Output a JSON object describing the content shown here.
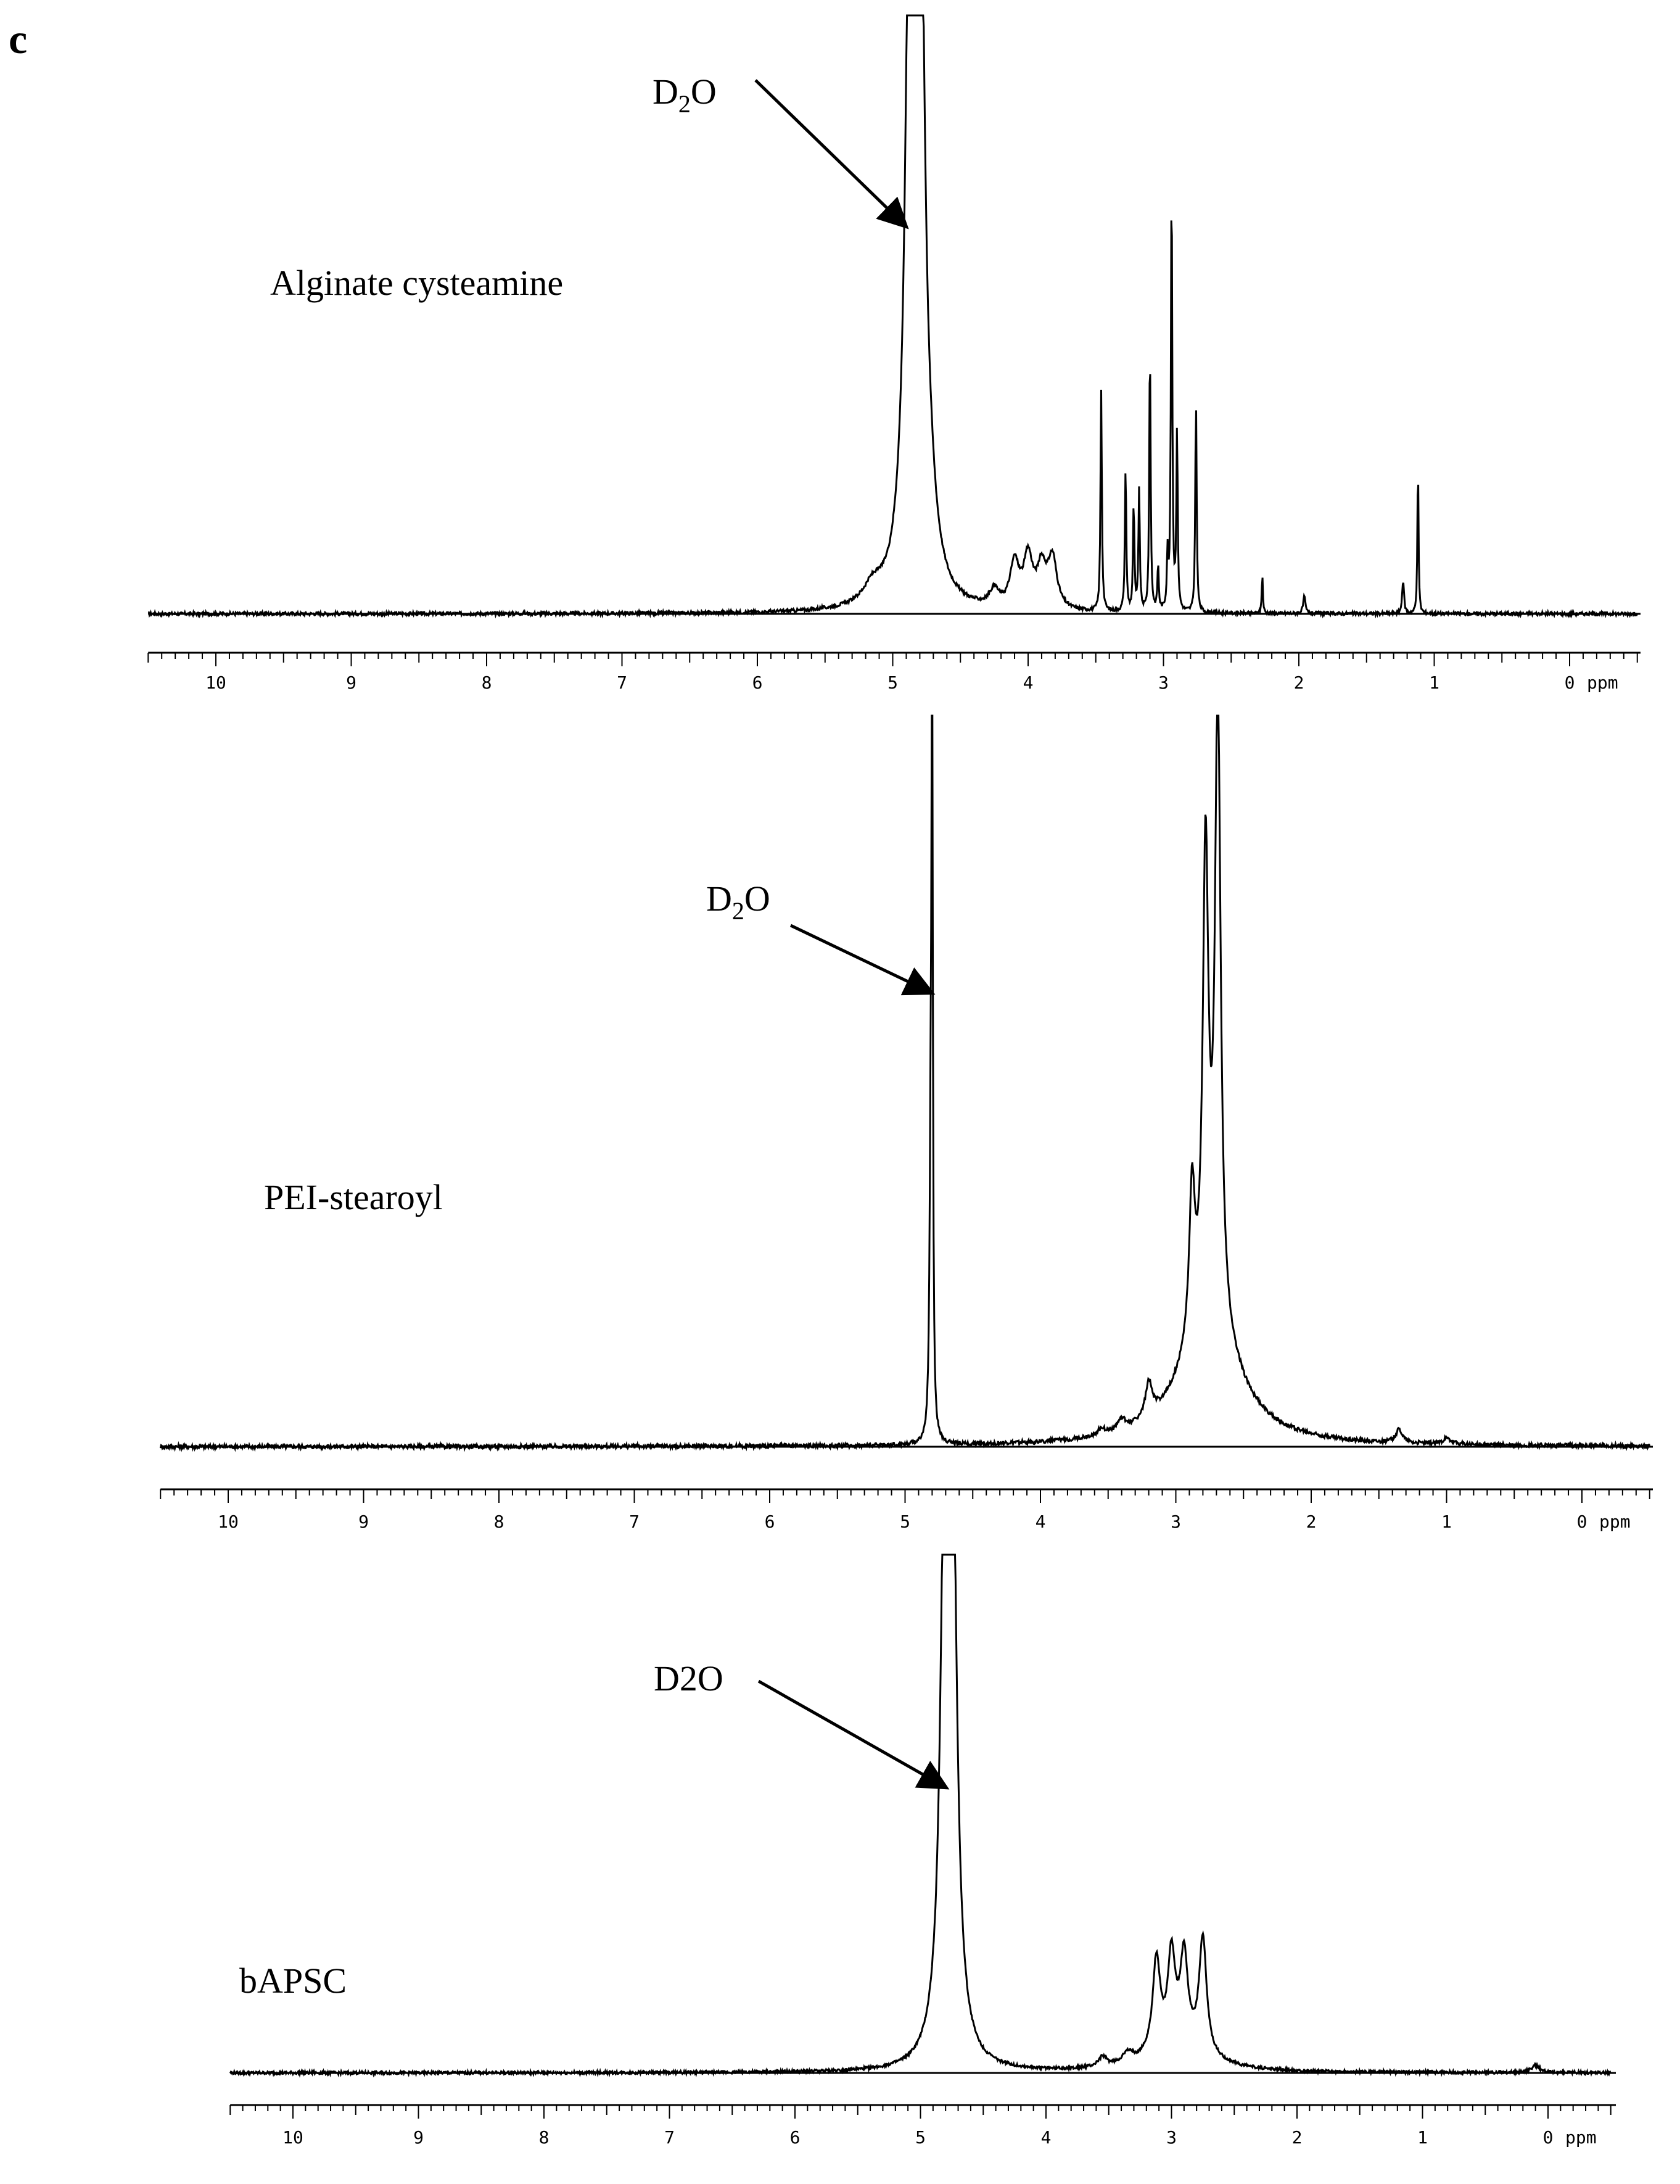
{
  "panel_label": "c",
  "chart_data": [
    {
      "type": "line",
      "name": "Alginate cysteamine",
      "label": "Alginate cysteamine",
      "xlabel": "ppm",
      "x_reversed": true,
      "xlim": [
        10.5,
        -0.5
      ],
      "ticks": [
        10,
        9,
        8,
        7,
        6,
        5,
        4,
        3,
        2,
        1,
        0
      ],
      "tick_labels": [
        "10",
        "9",
        "8",
        "7",
        "6",
        "5",
        "4",
        "3",
        "2",
        "1",
        "0"
      ],
      "unit_label": "ppm",
      "ylim": [
        0,
        1.08
      ],
      "annotation": {
        "text_main": "D",
        "text_sub": "2",
        "text_end": "O",
        "x": 4.9
      },
      "baseline": 0.0,
      "peaks": [
        {
          "x": 5.15,
          "h": 0.03,
          "w": 0.08
        },
        {
          "x": 4.87,
          "h": 1.25,
          "w": 0.04
        },
        {
          "x": 4.8,
          "h": 1.3,
          "w": 0.04
        },
        {
          "x": 4.72,
          "h": 0.06,
          "w": 0.06
        },
        {
          "x": 4.25,
          "h": 0.03,
          "w": 0.04
        },
        {
          "x": 4.1,
          "h": 0.08,
          "w": 0.04
        },
        {
          "x": 4.0,
          "h": 0.09,
          "w": 0.04
        },
        {
          "x": 3.9,
          "h": 0.07,
          "w": 0.04
        },
        {
          "x": 3.82,
          "h": 0.09,
          "w": 0.04
        },
        {
          "x": 3.46,
          "h": 0.4,
          "w": 0.006
        },
        {
          "x": 3.28,
          "h": 0.26,
          "w": 0.006
        },
        {
          "x": 3.22,
          "h": 0.19,
          "w": 0.006
        },
        {
          "x": 3.18,
          "h": 0.22,
          "w": 0.006
        },
        {
          "x": 3.1,
          "h": 0.48,
          "w": 0.006
        },
        {
          "x": 3.04,
          "h": 0.08,
          "w": 0.006
        },
        {
          "x": 2.97,
          "h": 0.1,
          "w": 0.006
        },
        {
          "x": 2.94,
          "h": 0.78,
          "w": 0.006
        },
        {
          "x": 2.9,
          "h": 0.32,
          "w": 0.006
        },
        {
          "x": 2.76,
          "h": 0.38,
          "w": 0.006
        },
        {
          "x": 2.27,
          "h": 0.07,
          "w": 0.005
        },
        {
          "x": 1.96,
          "h": 0.03,
          "w": 0.01
        },
        {
          "x": 1.23,
          "h": 0.06,
          "w": 0.008
        },
        {
          "x": 1.12,
          "h": 0.27,
          "w": 0.005
        }
      ]
    },
    {
      "type": "line",
      "name": "PEI-stearoyl",
      "label": "PEI-stearoyl",
      "xlabel": "ppm",
      "x_reversed": true,
      "xlim": [
        10.5,
        -0.5
      ],
      "ticks": [
        10,
        9,
        8,
        7,
        6,
        5,
        4,
        3,
        2,
        1,
        0
      ],
      "tick_labels": [
        "10",
        "9",
        "8",
        "7",
        "6",
        "5",
        "4",
        "3",
        "2",
        "1",
        "0"
      ],
      "unit_label": "ppm",
      "ylim": [
        0,
        1.08
      ],
      "annotation": {
        "text_main": "D",
        "text_sub": "2",
        "text_end": "O",
        "x": 4.79
      },
      "baseline": 0.0,
      "peaks": [
        {
          "x": 4.8,
          "h": 1.0,
          "w": 0.006
        },
        {
          "x": 4.81,
          "h": 0.4,
          "w": 0.01
        },
        {
          "x": 3.55,
          "h": 0.01,
          "w": 0.03
        },
        {
          "x": 3.4,
          "h": 0.015,
          "w": 0.04
        },
        {
          "x": 3.2,
          "h": 0.05,
          "w": 0.03
        },
        {
          "x": 2.88,
          "h": 0.22,
          "w": 0.025
        },
        {
          "x": 2.78,
          "h": 0.68,
          "w": 0.025
        },
        {
          "x": 2.69,
          "h": 0.92,
          "w": 0.025
        },
        {
          "x": 2.75,
          "h": 0.18,
          "w": 0.25
        },
        {
          "x": 1.35,
          "h": 0.02,
          "w": 0.03
        },
        {
          "x": 1.0,
          "h": 0.008,
          "w": 0.04
        }
      ]
    },
    {
      "type": "line",
      "name": "bAPSC",
      "label": "bAPSC",
      "xlabel": "ppm",
      "x_reversed": true,
      "xlim": [
        10.5,
        -0.5
      ],
      "ticks": [
        10,
        9,
        8,
        7,
        6,
        5,
        4,
        3,
        2,
        1,
        0
      ],
      "tick_labels": [
        "10",
        "9",
        "8",
        "7",
        "6",
        "5",
        "4",
        "3",
        "2",
        "1",
        "0"
      ],
      "unit_label": "ppm",
      "ylim": [
        0,
        1.08
      ],
      "annotation": {
        "text_main": "D2O",
        "text_sub": "",
        "text_end": "",
        "x": 4.78
      },
      "baseline": 0.0,
      "peaks": [
        {
          "x": 4.8,
          "h": 1.25,
          "w": 0.04
        },
        {
          "x": 4.75,
          "h": 1.2,
          "w": 0.04
        },
        {
          "x": 3.55,
          "h": 0.02,
          "w": 0.04
        },
        {
          "x": 3.35,
          "h": 0.02,
          "w": 0.05
        },
        {
          "x": 3.12,
          "h": 0.19,
          "w": 0.035
        },
        {
          "x": 3.0,
          "h": 0.18,
          "w": 0.035
        },
        {
          "x": 2.9,
          "h": 0.18,
          "w": 0.035
        },
        {
          "x": 2.75,
          "h": 0.24,
          "w": 0.035
        },
        {
          "x": 2.95,
          "h": 0.06,
          "w": 0.25
        },
        {
          "x": 0.1,
          "h": 0.015,
          "w": 0.04
        }
      ]
    }
  ]
}
